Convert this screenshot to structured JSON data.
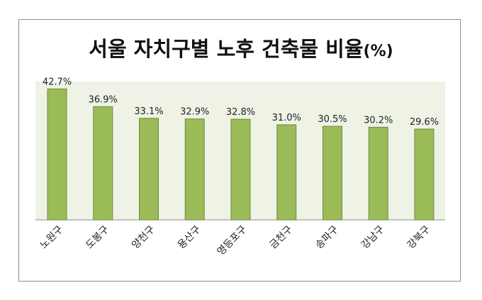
{
  "chart_data": {
    "type": "bar",
    "title": "서울 자치구별 노후 건축물 비율",
    "title_unit": "(%)",
    "categories": [
      "노원구",
      "도봉구",
      "양천구",
      "용산구",
      "영등포구",
      "금천구",
      "송파구",
      "강남구",
      "강북구"
    ],
    "values": [
      42.7,
      36.9,
      33.1,
      32.9,
      32.8,
      31.0,
      30.5,
      30.2,
      29.6
    ],
    "data_labels": [
      "42.7%",
      "36.9%",
      "33.1%",
      "32.9%",
      "32.8%",
      "31.0%",
      "30.5%",
      "30.2%",
      "29.6%"
    ],
    "xlabel": "",
    "ylabel": "",
    "ylim": [
      0,
      45
    ],
    "grid": false,
    "legend": "none",
    "colors": {
      "bar_fill": "#9bbb59",
      "bar_stroke": "#71893f",
      "plot_background": "#eef3e6"
    }
  }
}
